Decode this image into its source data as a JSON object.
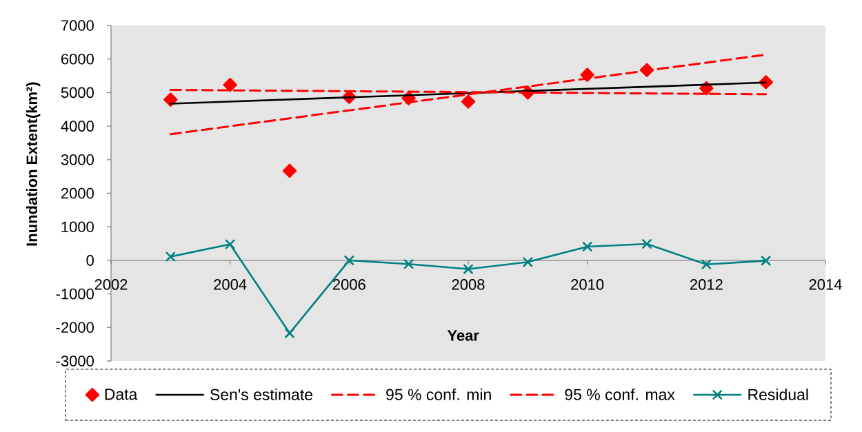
{
  "chart_data": {
    "type": "line",
    "xlabel": "Year",
    "ylabel": "Inundation Extent(km²)",
    "xlim": [
      2002,
      2014
    ],
    "xticks": [
      2002,
      2004,
      2006,
      2008,
      2010,
      2012,
      2014
    ],
    "ylim": [
      -3000,
      7000
    ],
    "yticks": [
      -3000,
      -2000,
      -1000,
      0,
      1000,
      2000,
      3000,
      4000,
      5000,
      6000,
      7000
    ],
    "legend": "bottom",
    "series": [
      {
        "name": "Data",
        "type": "scatter",
        "color": "#ff0000",
        "marker": "diamond",
        "x": [
          2003,
          2004,
          2005,
          2006,
          2007,
          2008,
          2009,
          2010,
          2011,
          2012,
          2013
        ],
        "values": [
          4790,
          5230,
          2670,
          4870,
          4830,
          4730,
          5000,
          5530,
          5670,
          5130,
          5310
        ]
      },
      {
        "name": "Sen's estimate",
        "color": "#000000",
        "marker": "none",
        "line_style": "solid",
        "x": [
          2003,
          2013
        ],
        "values": [
          4670,
          5300
        ]
      },
      {
        "name": "95 % conf. min",
        "color": "#ff0000",
        "marker": "none",
        "line_style": "dashed",
        "x": [
          2003,
          2013
        ],
        "values": [
          5080,
          4950
        ]
      },
      {
        "name": "95 % conf. max",
        "color": "#ff0000",
        "marker": "none",
        "line_style": "dashed",
        "x": [
          2003,
          2013
        ],
        "values": [
          3760,
          6130
        ]
      },
      {
        "name": "Residual",
        "color": "#008080",
        "marker": "cross",
        "line_style": "solid",
        "x": [
          2003,
          2004,
          2005,
          2006,
          2007,
          2008,
          2009,
          2010,
          2011,
          2012,
          2013
        ],
        "values": [
          110,
          480,
          -2170,
          0,
          -110,
          -260,
          -50,
          410,
          490,
          -120,
          -10
        ]
      }
    ]
  }
}
